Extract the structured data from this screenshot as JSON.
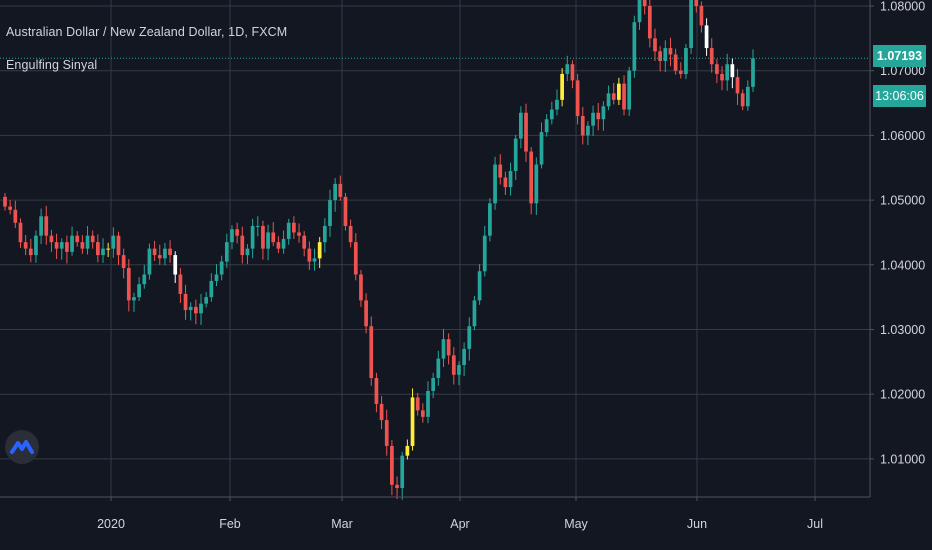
{
  "header": {
    "title": "Australian Dollar / New Zealand Dollar, 1D, FXCM",
    "indicator": "Engulfing Sinyal"
  },
  "badges": {
    "last_price": "1.07193",
    "countdown": "13:06:06",
    "color": "#26a69a"
  },
  "colors": {
    "background": "#131722",
    "grid": "#363a45",
    "up": "#26a69a",
    "down": "#ef5350",
    "signal": "#ffeb3b",
    "text": "#d1d4dc",
    "logo": "#2962ff"
  },
  "logo_icon": "tradingview-logo-icon",
  "chart_data": {
    "type": "candlestick",
    "ylim": [
      1.0045,
      1.0822
    ],
    "y_ticks": [
      "1.08000",
      "1.07000",
      "1.06000",
      "1.05000",
      "1.04000",
      "1.03000",
      "1.02000",
      "1.01000"
    ],
    "x_ticks": [
      "2020",
      "Feb",
      "Mar",
      "Apr",
      "May",
      "Jun",
      "Jul"
    ],
    "last_close": 1.07193,
    "closes": [
      1.049,
      1.0485,
      1.0465,
      1.0435,
      1.0425,
      1.0415,
      1.0445,
      1.0475,
      1.0445,
      1.0435,
      1.0425,
      1.0435,
      1.042,
      1.0445,
      1.0435,
      1.0425,
      1.0445,
      1.0435,
      1.0415,
      1.0425,
      1.0425,
      1.0445,
      1.0415,
      1.0395,
      1.0345,
      1.035,
      1.037,
      1.0385,
      1.0425,
      1.0415,
      1.041,
      1.0425,
      1.0415,
      1.0385,
      1.0355,
      1.033,
      1.0335,
      1.0325,
      1.034,
      1.035,
      1.0375,
      1.0385,
      1.0405,
      1.0435,
      1.0455,
      1.0445,
      1.0415,
      1.0425,
      1.046,
      1.046,
      1.0425,
      1.045,
      1.0435,
      1.0425,
      1.044,
      1.0465,
      1.045,
      1.0445,
      1.0425,
      1.0405,
      1.041,
      1.0435,
      1.046,
      1.05,
      1.0525,
      1.0505,
      1.046,
      1.0435,
      1.0385,
      1.0345,
      1.0305,
      1.0225,
      1.0185,
      1.016,
      1.012,
      1.006,
      1.0055,
      1.0105,
      1.012,
      1.0195,
      1.0175,
      1.0165,
      1.0205,
      1.0225,
      1.0255,
      1.0285,
      1.026,
      1.023,
      1.0245,
      1.027,
      1.0305,
      1.0345,
      1.039,
      1.0445,
      1.0495,
      1.0555,
      1.0535,
      1.052,
      1.0545,
      1.0595,
      1.0635,
      1.0575,
      1.0495,
      1.0555,
      1.0605,
      1.0625,
      1.064,
      1.0655,
      1.0695,
      1.071,
      1.0685,
      1.063,
      1.06,
      1.0615,
      1.0635,
      1.0625,
      1.0645,
      1.0665,
      1.0655,
      1.068,
      1.064,
      1.07,
      1.0775,
      1.0815,
      1.08,
      1.075,
      1.073,
      1.0715,
      1.0735,
      1.0725,
      1.07,
      1.0695,
      1.0735,
      1.0815,
      1.08,
      1.077,
      1.0735,
      1.071,
      1.0695,
      1.0685,
      1.071,
      1.069,
      1.0665,
      1.0645,
      1.0675,
      1.0719
    ],
    "signal_bars": [
      20,
      33,
      61,
      78,
      79,
      108,
      119,
      136,
      141
    ]
  }
}
